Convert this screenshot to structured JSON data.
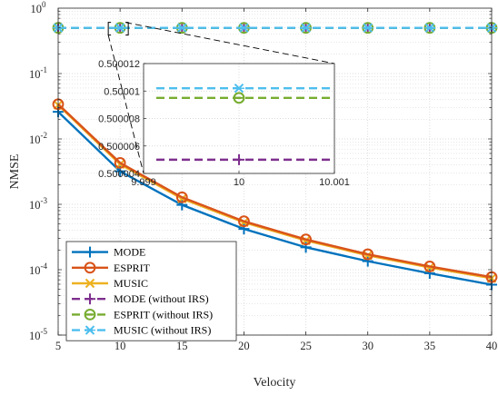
{
  "chart_data": {
    "type": "line",
    "xlabel": "Velocity",
    "ylabel": "NMSE",
    "x": [
      5,
      10,
      15,
      20,
      25,
      30,
      35,
      40
    ],
    "xlim": [
      5,
      40
    ],
    "ylim": [
      1e-05,
      1
    ],
    "yscale": "log",
    "grid": true,
    "legend_position": "bottom-left",
    "x_ticks": [
      "5",
      "10",
      "15",
      "20",
      "25",
      "30",
      "35",
      "40"
    ],
    "y_ticks": [
      {
        "base": "10",
        "exp": "0",
        "value": 1
      },
      {
        "base": "10",
        "exp": "-1",
        "value": 0.1
      },
      {
        "base": "10",
        "exp": "-2",
        "value": 0.01
      },
      {
        "base": "10",
        "exp": "-3",
        "value": 0.001
      },
      {
        "base": "10",
        "exp": "-4",
        "value": 0.0001
      },
      {
        "base": "10",
        "exp": "-5",
        "value": 1e-05
      }
    ],
    "series": [
      {
        "name": "MODE",
        "color": "#0072BD",
        "marker": "plus",
        "dash": "solid",
        "values": [
          0.026,
          0.0032,
          0.00098,
          0.00042,
          0.00022,
          0.000135,
          8.8e-05,
          5.9e-05
        ]
      },
      {
        "name": "ESPRIT",
        "color": "#D95319",
        "marker": "circle",
        "dash": "solid",
        "values": [
          0.034,
          0.0043,
          0.00128,
          0.00055,
          0.00029,
          0.000172,
          0.000112,
          7.7e-05
        ]
      },
      {
        "name": "MUSIC",
        "color": "#EDB120",
        "marker": "x",
        "dash": "solid",
        "values": [
          0.033,
          0.0041,
          0.00122,
          0.00053,
          0.00028,
          0.000166,
          0.000108,
          7.4e-05
        ]
      },
      {
        "name": "MODE (without IRS)",
        "color": "#7E2F8E",
        "marker": "plus",
        "dash": "dashed",
        "values": [
          0.500005,
          0.500005,
          0.500005,
          0.500005,
          0.500005,
          0.500005,
          0.500005,
          0.500005
        ]
      },
      {
        "name": "ESPRIT (without IRS)",
        "color": "#77AC30",
        "marker": "circle-minus",
        "dash": "dashed",
        "values": [
          0.5000095,
          0.5000095,
          0.5000095,
          0.5000095,
          0.5000095,
          0.5000095,
          0.5000095,
          0.5000095
        ]
      },
      {
        "name": "MUSIC (without IRS)",
        "color": "#4DBEEE",
        "marker": "asterisk",
        "dash": "dashed",
        "values": [
          0.5000102,
          0.5000102,
          0.5000102,
          0.5000102,
          0.5000102,
          0.5000102,
          0.5000102,
          0.5000102
        ]
      }
    ],
    "inset": {
      "xlim": [
        9.999,
        10.001
      ],
      "ylim": [
        0.500004,
        0.500012
      ],
      "x_ticks": [
        "9.999",
        "10",
        "10.001"
      ],
      "y_ticks": [
        "0.500012",
        "0.50001",
        "0.500008",
        "0.500006",
        "0.500004"
      ],
      "x_tick_values": [
        9.999,
        10,
        10.001
      ],
      "y_tick_values": [
        0.500012,
        0.50001,
        0.500008,
        0.500006,
        0.500004
      ],
      "series_values": [
        {
          "name": "MODE (without IRS)",
          "y": 0.500005
        },
        {
          "name": "ESPRIT (without IRS)",
          "y": 0.5000095
        },
        {
          "name": "MUSIC (without IRS)",
          "y": 0.5000102
        }
      ]
    }
  }
}
